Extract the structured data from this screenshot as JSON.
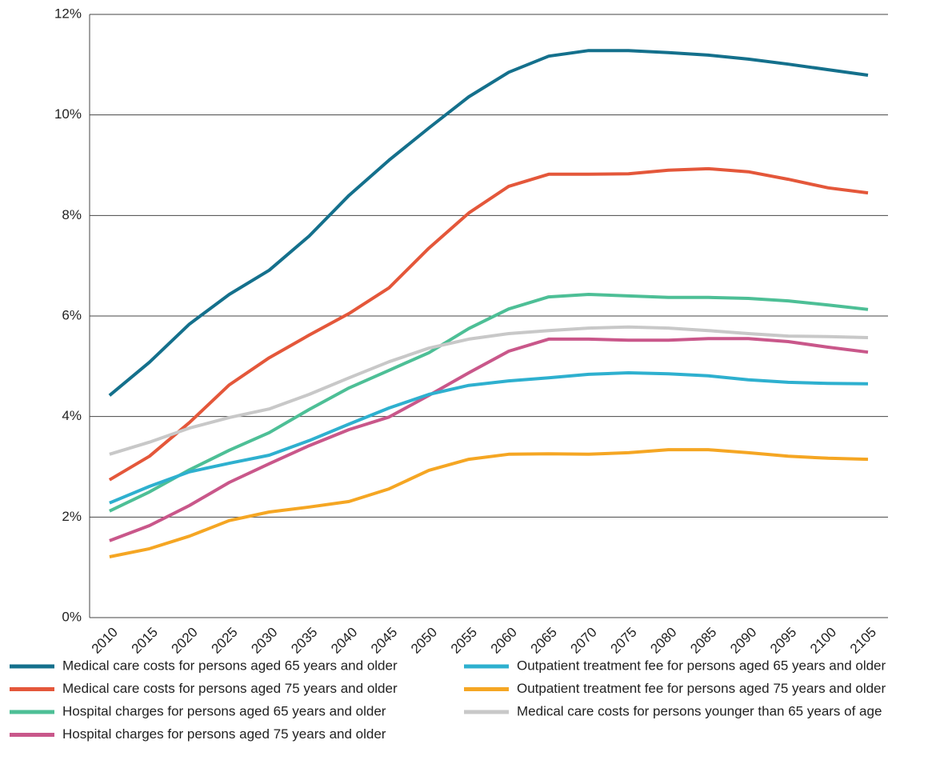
{
  "chart_data": {
    "type": "line",
    "categories": [
      "2010",
      "2015",
      "2020",
      "2025",
      "2030",
      "2035",
      "2040",
      "2045",
      "2050",
      "2055",
      "2060",
      "2065",
      "2070",
      "2075",
      "2080",
      "2085",
      "2090",
      "2095",
      "2100",
      "2105"
    ],
    "ylim": [
      0,
      12
    ],
    "yticks": [
      {
        "value": 0,
        "label": "0%"
      },
      {
        "value": 2,
        "label": "2%"
      },
      {
        "value": 4,
        "label": "4%"
      },
      {
        "value": 6,
        "label": "6%"
      },
      {
        "value": 8,
        "label": "8%"
      },
      {
        "value": 10,
        "label": "10%"
      },
      {
        "value": 12,
        "label": "12%"
      }
    ],
    "grid": true,
    "series": [
      {
        "name": "Medical care costs for persons aged 65 years and older",
        "color": "#14708c",
        "values": [
          4.42,
          5.08,
          5.84,
          6.43,
          6.91,
          7.59,
          8.4,
          9.1,
          9.74,
          10.36,
          10.85,
          11.17,
          11.28,
          11.28,
          11.24,
          11.19,
          11.11,
          11.01,
          10.9,
          10.79
        ]
      },
      {
        "name": "Medical care costs for persons aged 75 years and older",
        "color": "#e4573a",
        "values": [
          2.74,
          3.21,
          3.88,
          4.63,
          5.17,
          5.62,
          6.05,
          6.56,
          7.35,
          8.05,
          8.58,
          8.82,
          8.82,
          8.83,
          8.9,
          8.93,
          8.87,
          8.72,
          8.55,
          8.45
        ]
      },
      {
        "name": "Hospital charges for persons aged 65 years and older",
        "color": "#4dbf96",
        "values": [
          2.12,
          2.5,
          2.94,
          3.33,
          3.68,
          4.14,
          4.57,
          4.92,
          5.27,
          5.75,
          6.14,
          6.38,
          6.43,
          6.4,
          6.37,
          6.37,
          6.35,
          6.3,
          6.22,
          6.13
        ]
      },
      {
        "name": "Hospital charges for persons aged 75 years and older",
        "color": "#c9578a",
        "values": [
          1.53,
          1.83,
          2.23,
          2.69,
          3.06,
          3.42,
          3.74,
          3.99,
          4.42,
          4.87,
          5.3,
          5.54,
          5.54,
          5.52,
          5.52,
          5.55,
          5.55,
          5.49,
          5.38,
          5.28
        ]
      },
      {
        "name": "Outpatient treatment fee for persons aged 65 years and older",
        "color": "#2eb0cf",
        "values": [
          2.28,
          2.61,
          2.9,
          3.07,
          3.23,
          3.52,
          3.85,
          4.17,
          4.44,
          4.62,
          4.71,
          4.77,
          4.84,
          4.87,
          4.85,
          4.81,
          4.73,
          4.68,
          4.66,
          4.65
        ]
      },
      {
        "name": "Outpatient treatment fee for persons aged 75 years and older",
        "color": "#f5a623",
        "values": [
          1.21,
          1.37,
          1.62,
          1.93,
          2.1,
          2.2,
          2.31,
          2.56,
          2.93,
          3.15,
          3.25,
          3.26,
          3.25,
          3.28,
          3.34,
          3.34,
          3.28,
          3.21,
          3.17,
          3.15
        ]
      },
      {
        "name": "Medical care costs for persons younger than 65 years of age",
        "color": "#c8c8c8",
        "values": [
          3.25,
          3.49,
          3.77,
          3.98,
          4.15,
          4.44,
          4.77,
          5.09,
          5.36,
          5.54,
          5.65,
          5.71,
          5.76,
          5.78,
          5.76,
          5.71,
          5.65,
          5.6,
          5.59,
          5.57
        ]
      }
    ]
  }
}
